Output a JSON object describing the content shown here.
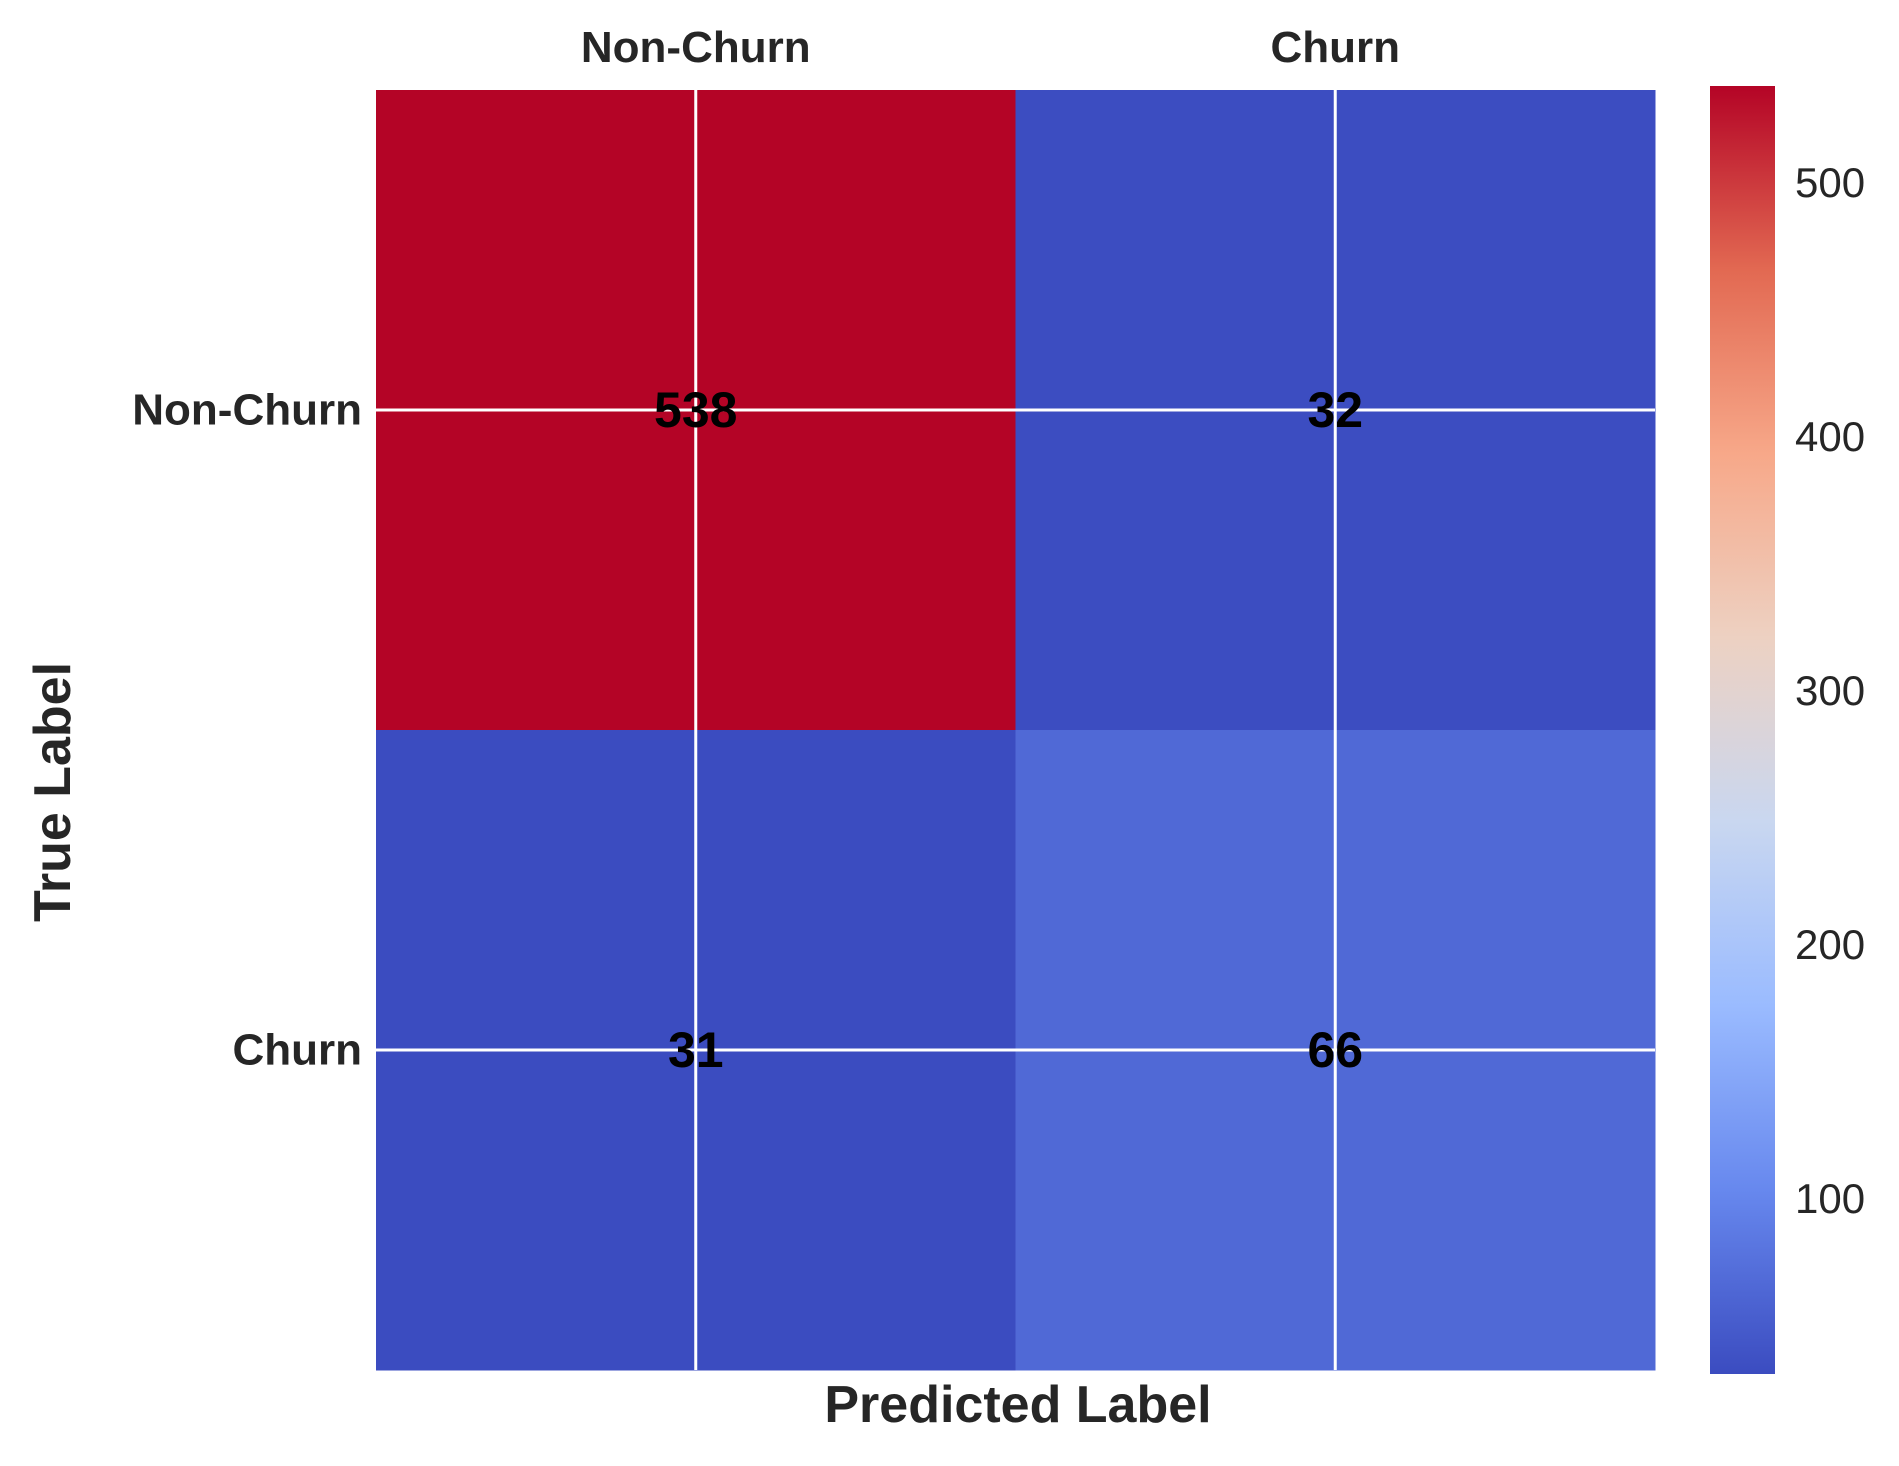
{
  "chart_data": {
    "type": "heatmap",
    "title": "",
    "xlabel": "Predicted Label",
    "ylabel": "True Label",
    "x_categories": [
      "Non-Churn",
      "Churn"
    ],
    "y_categories": [
      "Non-Churn",
      "Churn"
    ],
    "values": [
      [
        538,
        32
      ],
      [
        31,
        66
      ]
    ],
    "colormap": "coolwarm",
    "colormap_stops": [
      "#3b4cc0",
      "#6788ee",
      "#9abbff",
      "#c9d7f0",
      "#edd1c2",
      "#f7a889",
      "#e26952",
      "#b40426"
    ],
    "color_range": [
      31,
      538
    ],
    "colorbar": {
      "ticks": [
        100,
        200,
        300,
        400,
        500
      ],
      "tick_labels": [
        "100",
        "200",
        "300",
        "400",
        "500"
      ]
    },
    "x_ticks_position": "top",
    "grid": true,
    "grid_color": "#ffffff"
  }
}
